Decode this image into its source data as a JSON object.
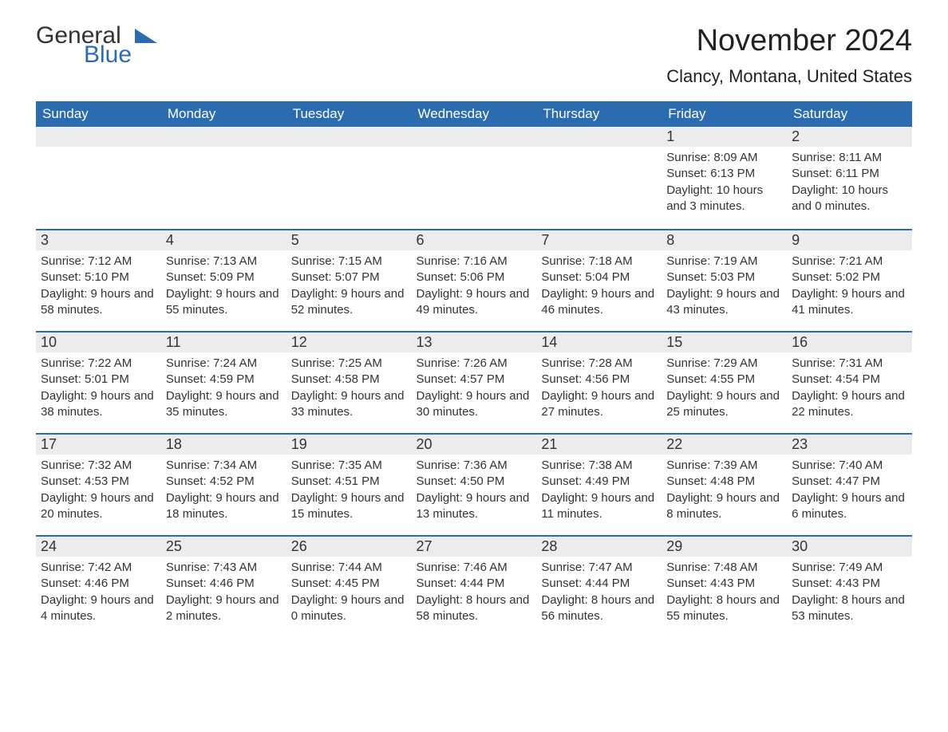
{
  "logo": {
    "line1": "General",
    "line2": "Blue"
  },
  "title": "November 2024",
  "location": "Clancy, Montana, United States",
  "colors": {
    "header_bg": "#2b6cb0",
    "header_text": "#ffffff",
    "daynum_bg": "#ececec",
    "daynum_border": "#2b6cb0",
    "body_bg": "#ffffff",
    "text": "#333333"
  },
  "day_headers": [
    "Sunday",
    "Monday",
    "Tuesday",
    "Wednesday",
    "Thursday",
    "Friday",
    "Saturday"
  ],
  "weeks": [
    [
      null,
      null,
      null,
      null,
      null,
      {
        "n": "1",
        "sunrise": "8:09 AM",
        "sunset": "6:13 PM",
        "daylight": "10 hours and 3 minutes."
      },
      {
        "n": "2",
        "sunrise": "8:11 AM",
        "sunset": "6:11 PM",
        "daylight": "10 hours and 0 minutes."
      }
    ],
    [
      {
        "n": "3",
        "sunrise": "7:12 AM",
        "sunset": "5:10 PM",
        "daylight": "9 hours and 58 minutes."
      },
      {
        "n": "4",
        "sunrise": "7:13 AM",
        "sunset": "5:09 PM",
        "daylight": "9 hours and 55 minutes."
      },
      {
        "n": "5",
        "sunrise": "7:15 AM",
        "sunset": "5:07 PM",
        "daylight": "9 hours and 52 minutes."
      },
      {
        "n": "6",
        "sunrise": "7:16 AM",
        "sunset": "5:06 PM",
        "daylight": "9 hours and 49 minutes."
      },
      {
        "n": "7",
        "sunrise": "7:18 AM",
        "sunset": "5:04 PM",
        "daylight": "9 hours and 46 minutes."
      },
      {
        "n": "8",
        "sunrise": "7:19 AM",
        "sunset": "5:03 PM",
        "daylight": "9 hours and 43 minutes."
      },
      {
        "n": "9",
        "sunrise": "7:21 AM",
        "sunset": "5:02 PM",
        "daylight": "9 hours and 41 minutes."
      }
    ],
    [
      {
        "n": "10",
        "sunrise": "7:22 AM",
        "sunset": "5:01 PM",
        "daylight": "9 hours and 38 minutes."
      },
      {
        "n": "11",
        "sunrise": "7:24 AM",
        "sunset": "4:59 PM",
        "daylight": "9 hours and 35 minutes."
      },
      {
        "n": "12",
        "sunrise": "7:25 AM",
        "sunset": "4:58 PM",
        "daylight": "9 hours and 33 minutes."
      },
      {
        "n": "13",
        "sunrise": "7:26 AM",
        "sunset": "4:57 PM",
        "daylight": "9 hours and 30 minutes."
      },
      {
        "n": "14",
        "sunrise": "7:28 AM",
        "sunset": "4:56 PM",
        "daylight": "9 hours and 27 minutes."
      },
      {
        "n": "15",
        "sunrise": "7:29 AM",
        "sunset": "4:55 PM",
        "daylight": "9 hours and 25 minutes."
      },
      {
        "n": "16",
        "sunrise": "7:31 AM",
        "sunset": "4:54 PM",
        "daylight": "9 hours and 22 minutes."
      }
    ],
    [
      {
        "n": "17",
        "sunrise": "7:32 AM",
        "sunset": "4:53 PM",
        "daylight": "9 hours and 20 minutes."
      },
      {
        "n": "18",
        "sunrise": "7:34 AM",
        "sunset": "4:52 PM",
        "daylight": "9 hours and 18 minutes."
      },
      {
        "n": "19",
        "sunrise": "7:35 AM",
        "sunset": "4:51 PM",
        "daylight": "9 hours and 15 minutes."
      },
      {
        "n": "20",
        "sunrise": "7:36 AM",
        "sunset": "4:50 PM",
        "daylight": "9 hours and 13 minutes."
      },
      {
        "n": "21",
        "sunrise": "7:38 AM",
        "sunset": "4:49 PM",
        "daylight": "9 hours and 11 minutes."
      },
      {
        "n": "22",
        "sunrise": "7:39 AM",
        "sunset": "4:48 PM",
        "daylight": "9 hours and 8 minutes."
      },
      {
        "n": "23",
        "sunrise": "7:40 AM",
        "sunset": "4:47 PM",
        "daylight": "9 hours and 6 minutes."
      }
    ],
    [
      {
        "n": "24",
        "sunrise": "7:42 AM",
        "sunset": "4:46 PM",
        "daylight": "9 hours and 4 minutes."
      },
      {
        "n": "25",
        "sunrise": "7:43 AM",
        "sunset": "4:46 PM",
        "daylight": "9 hours and 2 minutes."
      },
      {
        "n": "26",
        "sunrise": "7:44 AM",
        "sunset": "4:45 PM",
        "daylight": "9 hours and 0 minutes."
      },
      {
        "n": "27",
        "sunrise": "7:46 AM",
        "sunset": "4:44 PM",
        "daylight": "8 hours and 58 minutes."
      },
      {
        "n": "28",
        "sunrise": "7:47 AM",
        "sunset": "4:44 PM",
        "daylight": "8 hours and 56 minutes."
      },
      {
        "n": "29",
        "sunrise": "7:48 AM",
        "sunset": "4:43 PM",
        "daylight": "8 hours and 55 minutes."
      },
      {
        "n": "30",
        "sunrise": "7:49 AM",
        "sunset": "4:43 PM",
        "daylight": "8 hours and 53 minutes."
      }
    ]
  ],
  "labels": {
    "sunrise": "Sunrise: ",
    "sunset": "Sunset: ",
    "daylight": "Daylight: "
  }
}
